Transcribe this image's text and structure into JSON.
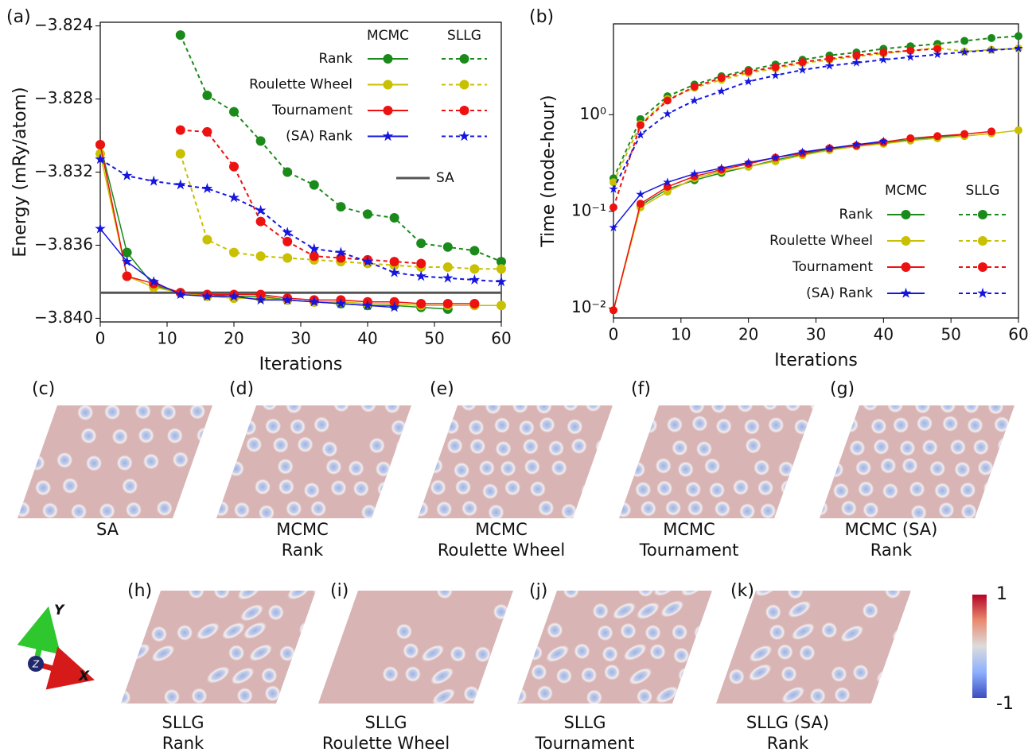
{
  "chart_data": [
    {
      "type": "line",
      "panel_label": "(a)",
      "xlabel": "Iterations",
      "ylabel": "Energy (mRy/atom)",
      "x": [
        0,
        4,
        8,
        12,
        16,
        20,
        24,
        28,
        32,
        36,
        40,
        44,
        48,
        52,
        56,
        60
      ],
      "xlim": [
        0,
        60
      ],
      "xticks": [
        0,
        10,
        20,
        30,
        40,
        50,
        60
      ],
      "ylim": [
        -3.8402,
        -3.8238
      ],
      "yticks": [
        {
          "value": -3.824,
          "label": "−3.824"
        },
        {
          "value": -3.828,
          "label": "−3.828"
        },
        {
          "value": -3.832,
          "label": "−3.832"
        },
        {
          "value": -3.836,
          "label": "−3.836"
        },
        {
          "value": -3.84,
          "label": "−3.840"
        }
      ],
      "log_y": false,
      "legend": "upper right",
      "groups": [
        {
          "name": "MCMC",
          "dash": false
        },
        {
          "name": "SLLG",
          "dash": true
        }
      ],
      "series": [
        {
          "name": "Rank",
          "color": "#1a8a1a",
          "marker": "circle",
          "values": [
            [
              -3.8305,
              -3.8364,
              -3.8382,
              -3.8386,
              -3.8387,
              -3.8388,
              -3.8388,
              -3.839,
              -3.8391,
              -3.8392,
              -3.8393,
              -3.8393,
              -3.8394,
              -3.8395,
              null,
              null
            ],
            [
              null,
              null,
              null,
              -3.8245,
              -3.8278,
              -3.8287,
              -3.8303,
              -3.832,
              -3.8327,
              -3.8339,
              -3.8343,
              -3.8345,
              -3.8359,
              -3.8361,
              -3.8363,
              -3.8369
            ]
          ]
        },
        {
          "name": "Roulette Wheel",
          "color": "#c8c000",
          "marker": "circle",
          "values": [
            [
              -3.831,
              -3.8377,
              -3.8383,
              -3.8386,
              -3.8388,
              -3.8389,
              -3.8389,
              -3.839,
              -3.8391,
              -3.8391,
              -3.8392,
              -3.8392,
              -3.8393,
              -3.8393,
              -3.8393,
              -3.8393
            ],
            [
              null,
              null,
              null,
              -3.831,
              -3.8357,
              -3.8364,
              -3.8366,
              -3.8367,
              -3.8368,
              -3.8369,
              -3.837,
              -3.8371,
              -3.8372,
              -3.8372,
              -3.8373,
              -3.8373
            ]
          ]
        },
        {
          "name": "Tournament",
          "color": "#ee1111",
          "marker": "circle",
          "values": [
            [
              -3.8305,
              -3.8377,
              -3.8381,
              -3.8386,
              -3.8387,
              -3.8387,
              -3.8387,
              -3.8389,
              -3.839,
              -3.839,
              -3.8391,
              -3.8391,
              -3.8392,
              -3.8392,
              -3.8392,
              null
            ],
            [
              null,
              null,
              null,
              -3.8297,
              -3.8298,
              -3.8317,
              -3.8347,
              -3.8358,
              -3.8366,
              -3.8367,
              -3.8368,
              -3.8369,
              -3.837,
              null,
              null,
              null
            ]
          ]
        },
        {
          "name": "(SA) Rank",
          "color": "#1515e0",
          "marker": "star",
          "values": [
            [
              -3.8351,
              -3.8369,
              -3.838,
              -3.8387,
              -3.8388,
              -3.8388,
              -3.839,
              -3.839,
              -3.8391,
              -3.8392,
              -3.8393,
              -3.8394,
              null,
              null,
              null,
              null
            ],
            [
              -3.8313,
              -3.8322,
              -3.8325,
              -3.8327,
              -3.8329,
              -3.8334,
              -3.8341,
              -3.8353,
              -3.8362,
              -3.8364,
              -3.8369,
              -3.8375,
              -3.8377,
              -3.8378,
              -3.8379,
              -3.838
            ]
          ]
        }
      ],
      "reference_lines": [
        {
          "name": "SA",
          "value": -3.8386,
          "color": "#555555"
        }
      ]
    },
    {
      "type": "line",
      "panel_label": "(b)",
      "xlabel": "Iterations",
      "ylabel": "Time (node-hour)",
      "x": [
        0,
        4,
        8,
        12,
        16,
        20,
        24,
        28,
        32,
        36,
        40,
        44,
        48,
        52,
        56,
        60
      ],
      "xlim": [
        0,
        60
      ],
      "xticks": [
        0,
        10,
        20,
        30,
        40,
        50,
        60
      ],
      "ylim": [
        0.0079,
        8.7
      ],
      "yticks": [
        {
          "value": 0.01,
          "label": "10⁻²"
        },
        {
          "value": 0.1,
          "label": "10⁻¹"
        },
        {
          "value": 1,
          "label": "10⁰"
        }
      ],
      "log_y": true,
      "legend": "lower right",
      "groups": [
        {
          "name": "MCMC",
          "dash": false
        },
        {
          "name": "SLLG",
          "dash": true
        }
      ],
      "series": [
        {
          "name": "Rank",
          "color": "#1a8a1a",
          "marker": "circle",
          "values": [
            [
              0.0095,
              0.115,
              0.17,
              0.21,
              0.25,
              0.29,
              0.34,
              0.39,
              0.44,
              0.48,
              0.51,
              0.55,
              0.59,
              0.62,
              null,
              null
            ],
            [
              0.22,
              0.9,
              1.55,
              2.05,
              2.5,
              2.9,
              3.3,
              3.7,
              4.1,
              4.4,
              4.8,
              5.1,
              5.4,
              5.8,
              6.2,
              6.5
            ]
          ]
        },
        {
          "name": "Roulette Wheel",
          "color": "#c8c000",
          "marker": "circle",
          "values": [
            [
              0.0095,
              0.11,
              0.16,
              0.22,
              0.26,
              0.29,
              0.33,
              0.38,
              0.43,
              0.47,
              0.5,
              0.54,
              0.57,
              0.6,
              0.64,
              0.69
            ],
            [
              0.2,
              0.8,
              1.45,
              1.9,
              2.3,
              2.7,
              3.0,
              3.4,
              3.7,
              4.0,
              4.3,
              4.6,
              4.9,
              4.5,
              4.7,
              4.85
            ]
          ]
        },
        {
          "name": "Tournament",
          "color": "#ee1111",
          "marker": "circle",
          "values": [
            [
              0.0095,
              0.12,
              0.18,
              0.23,
              0.27,
              0.31,
              0.36,
              0.4,
              0.45,
              0.48,
              0.52,
              0.57,
              0.6,
              0.63,
              0.67,
              null
            ],
            [
              0.11,
              0.78,
              1.4,
              1.95,
              2.4,
              2.8,
              3.1,
              3.5,
              3.8,
              4.1,
              4.4,
              4.6,
              4.8,
              null,
              null,
              null
            ]
          ]
        },
        {
          "name": "(SA) Rank",
          "color": "#1515e0",
          "marker": "star",
          "values": [
            [
              0.068,
              0.15,
              0.2,
              0.245,
              0.28,
              0.32,
              0.36,
              0.41,
              0.45,
              0.49,
              0.53,
              null,
              null,
              null,
              null,
              null
            ],
            [
              0.17,
              0.62,
              1.02,
              1.4,
              1.75,
              2.2,
              2.55,
              2.9,
              3.2,
              3.45,
              3.7,
              3.95,
              4.2,
              4.45,
              4.65,
              4.85
            ]
          ]
        }
      ]
    }
  ],
  "panels": [
    {
      "label": "(c)",
      "caption": [
        "SA"
      ]
    },
    {
      "label": "(d)",
      "caption": [
        "MCMC",
        "Rank"
      ]
    },
    {
      "label": "(e)",
      "caption": [
        "MCMC",
        "Roulette Wheel"
      ]
    },
    {
      "label": "(f)",
      "caption": [
        "MCMC",
        "Tournament"
      ]
    },
    {
      "label": "(g)",
      "caption": [
        "MCMC (SA)",
        "Rank"
      ]
    },
    {
      "label": "(h)",
      "caption": [
        "SLLG",
        "Rank"
      ]
    },
    {
      "label": "(i)",
      "caption": [
        "SLLG",
        "Roulette Wheel"
      ]
    },
    {
      "label": "(j)",
      "caption": [
        "SLLG",
        "Tournament"
      ]
    },
    {
      "label": "(k)",
      "caption": [
        "SLLG (SA)",
        "Rank"
      ]
    }
  ],
  "colorbar": {
    "ylim": [
      -1,
      1
    ],
    "yticks": [
      1,
      -1
    ]
  },
  "axes_icon": {
    "labels": [
      "Y",
      "Z",
      "X"
    ]
  }
}
